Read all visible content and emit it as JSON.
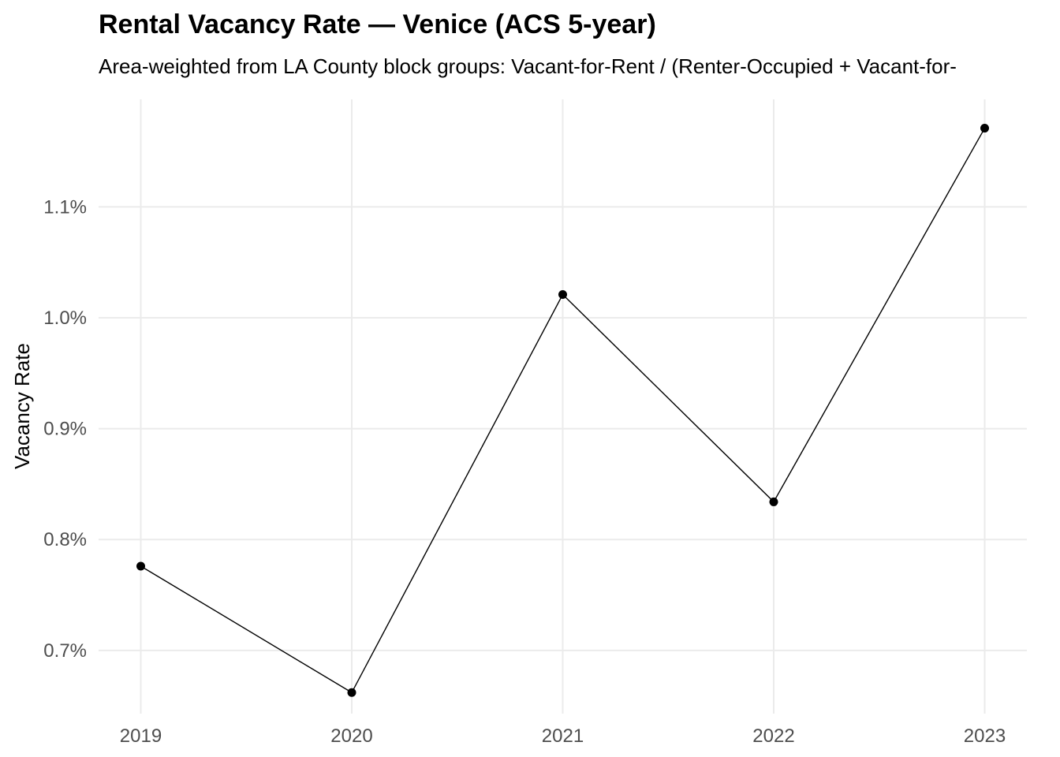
{
  "chart_data": {
    "type": "line",
    "title": "Rental Vacancy Rate — Venice (ACS 5-year)",
    "subtitle": "Area-weighted from LA County block groups: Vacant-for-Rent / (Renter-Occupied + Vacant-for-",
    "xlabel": "",
    "ylabel": "Vacancy Rate",
    "x": [
      2019,
      2020,
      2021,
      2022,
      2023
    ],
    "x_tick_labels": [
      "2019",
      "2020",
      "2021",
      "2022",
      "2023"
    ],
    "series": [
      {
        "values": [
          0.776,
          0.662,
          1.021,
          0.834,
          1.171
        ]
      }
    ],
    "y_unit": "%",
    "y_ticks": [
      0.7,
      0.8,
      0.9,
      1.0,
      1.1
    ],
    "y_tick_labels": [
      "0.7%",
      "0.8%",
      "0.9%",
      "1.0%",
      "1.1%"
    ],
    "ylim": [
      0.643,
      1.197
    ],
    "xlim": [
      2018.8,
      2023.2
    ],
    "grid": true,
    "legend": "none",
    "colors": {
      "line": "#000000",
      "point": "#000000",
      "grid": "#ebebeb",
      "tick_text": "#4d4d4d",
      "background": "#ffffff"
    }
  }
}
